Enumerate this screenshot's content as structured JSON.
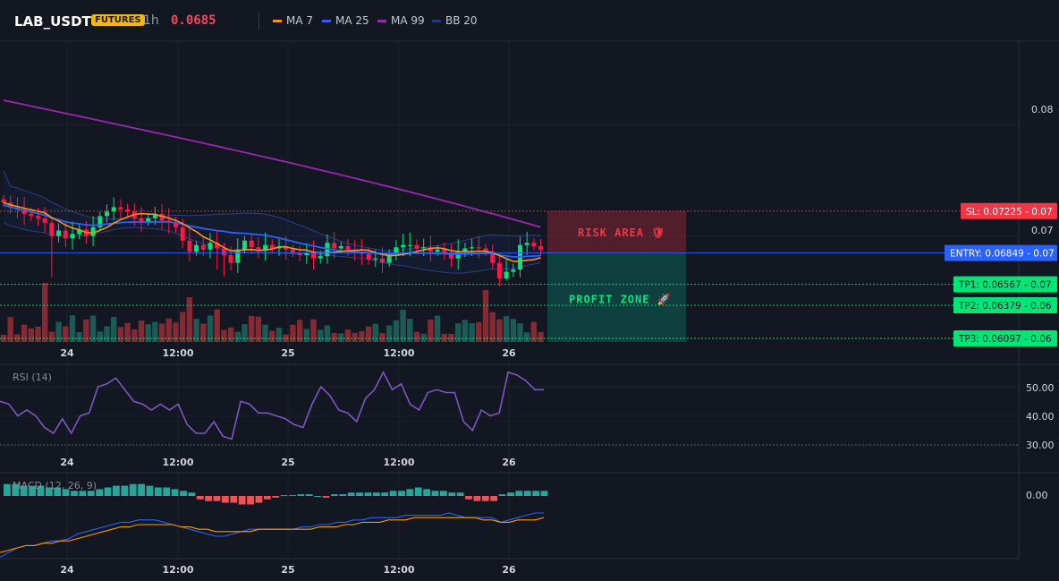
{
  "header": {
    "symbol": "LAB_USDT",
    "badge": "FUTURES",
    "interval": "1h",
    "price": "0.0685",
    "legend": [
      {
        "label": "MA 7",
        "color": "#f7931a"
      },
      {
        "label": "MA 25",
        "color": "#2962ff"
      },
      {
        "label": "MA 99",
        "color": "#9c27b0"
      },
      {
        "label": "BB 20",
        "color": "#1e3a8a"
      }
    ]
  },
  "colors": {
    "up": "#26a69a",
    "up_bright": "#00e676",
    "down": "#ef5350",
    "down_bright": "#ff1744",
    "sl": "#f23645",
    "entry": "#2962ff",
    "tp": "#00e676"
  },
  "chart_data": {
    "type": "candlestick",
    "price_axis": {
      "ticks": [
        "0.08",
        "0.07"
      ],
      "ylim": [
        0.0605,
        0.0875
      ]
    },
    "time_axis": [
      "24",
      "12:00",
      "25",
      "12:00",
      "26"
    ],
    "levels": [
      {
        "name": "SL",
        "label": "SL: 0.07225",
        "value": 0.07225,
        "axis_value": "0.07"
      },
      {
        "name": "ENTRY",
        "label": "ENTRY: 0.06849",
        "value": 0.06849,
        "axis_value": "0.07"
      },
      {
        "name": "TP1",
        "label": "TP1: 0.06567",
        "value": 0.06567,
        "axis_value": "0.07"
      },
      {
        "name": "TP2",
        "label": "TP2: 0.06379",
        "value": 0.06379,
        "axis_value": "0.06"
      },
      {
        "name": "TP3",
        "label": "TP3: 0.06097",
        "value": 0.06097,
        "axis_value": "0.06"
      }
    ],
    "zones": {
      "risk": "RISK AREA 🛡",
      "profit": "PROFIT ZONE 🚀"
    },
    "candles_close": [
      0.073,
      0.0726,
      0.0724,
      0.072,
      0.0718,
      0.0716,
      0.0712,
      0.07,
      0.0705,
      0.0698,
      0.0702,
      0.0706,
      0.07,
      0.0708,
      0.0718,
      0.0722,
      0.0726,
      0.0724,
      0.0722,
      0.0716,
      0.0713,
      0.0716,
      0.072,
      0.0714,
      0.0712,
      0.0708,
      0.0696,
      0.0686,
      0.0692,
      0.0688,
      0.0694,
      0.0689,
      0.0683,
      0.0676,
      0.0688,
      0.0696,
      0.069,
      0.0688,
      0.0692,
      0.0689,
      0.069,
      0.0688,
      0.0685,
      0.0683,
      0.0685,
      0.068,
      0.0682,
      0.0694,
      0.0689,
      0.0691,
      0.0688,
      0.0686,
      0.0684,
      0.0679,
      0.068,
      0.0676,
      0.0684,
      0.069,
      0.0692,
      0.0692,
      0.0689,
      0.069,
      0.0686,
      0.0688,
      0.0684,
      0.068,
      0.0686,
      0.0689,
      0.069,
      0.0689,
      0.0686,
      0.0676,
      0.0662,
      0.0668,
      0.067,
      0.0692,
      0.0694,
      0.0691,
      0.0688
    ],
    "rsi": {
      "label": "RSI (14)",
      "ticks": [
        "50.00",
        "40.00",
        "30.00"
      ],
      "values": [
        45,
        44,
        40,
        42,
        40,
        36,
        34,
        39,
        34,
        40,
        41,
        50,
        51,
        53,
        49,
        45,
        44,
        42,
        44,
        42,
        44,
        37,
        34,
        34,
        38,
        33,
        32,
        45,
        44,
        41,
        41,
        40,
        39,
        37,
        36,
        44,
        50,
        47,
        42,
        41,
        38,
        46,
        49,
        55,
        49,
        51,
        44,
        42,
        48,
        49,
        48,
        48,
        38,
        35,
        42,
        40,
        41,
        55,
        54,
        52,
        49,
        49
      ]
    },
    "macd": {
      "label": "MACD (12, 26, 9)",
      "ticks": [
        "0.00"
      ],
      "hist": [
        7,
        7,
        6,
        6,
        6,
        5,
        5,
        4,
        3,
        3,
        3,
        4,
        5,
        6,
        6,
        7,
        7,
        6,
        5,
        5,
        4,
        3,
        2,
        -2,
        -3,
        -3,
        -4,
        -4,
        -5,
        -5,
        -4,
        -2,
        -1,
        0.5,
        0.5,
        1,
        1,
        0,
        -1,
        1,
        1,
        2,
        2,
        2,
        2,
        2,
        3,
        3,
        4,
        5,
        4,
        3,
        3,
        2,
        2,
        -2,
        -3,
        -3,
        -3,
        1,
        2,
        3,
        3,
        3,
        3
      ],
      "macd_line": [
        -14,
        -12,
        -10,
        -9,
        -9,
        -8,
        -7,
        -7,
        -6,
        -4,
        -3,
        -2,
        -1,
        0,
        1,
        1,
        2,
        2,
        2,
        1,
        0,
        -1,
        -2,
        -3,
        -4,
        -5,
        -5,
        -4,
        -3,
        -2,
        -2,
        -2,
        -2,
        -2,
        -2,
        -1,
        -1,
        0,
        0,
        1,
        1,
        2,
        2,
        3,
        3,
        3,
        3,
        4,
        4,
        4,
        4,
        4,
        5,
        4,
        3,
        3,
        3,
        3,
        1,
        2,
        3,
        4,
        5,
        5
      ],
      "signal_line": [
        -12,
        -11,
        -10,
        -9,
        -9,
        -8,
        -8,
        -7,
        -7,
        -6,
        -5,
        -4,
        -3,
        -2,
        -1,
        -1,
        0,
        0,
        0,
        0,
        0,
        -1,
        -1,
        -2,
        -2,
        -3,
        -3,
        -3,
        -3,
        -3,
        -2,
        -2,
        -2,
        -2,
        -2,
        -2,
        -2,
        -1,
        -1,
        -1,
        0,
        0,
        1,
        1,
        1,
        2,
        2,
        2,
        3,
        3,
        3,
        3,
        3,
        3,
        3,
        3,
        2,
        2,
        1,
        1,
        2,
        2,
        2,
        3
      ]
    }
  }
}
